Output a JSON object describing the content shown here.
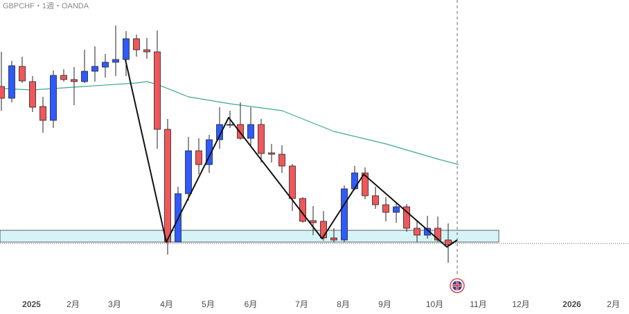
{
  "chart_data": {
    "type": "candlestick",
    "title": "GBPCHF・1週・OANDA",
    "x": [
      0,
      1,
      2,
      3,
      4,
      5,
      6,
      7,
      8,
      9,
      10,
      11,
      12,
      13,
      14,
      15,
      16,
      17,
      18,
      19,
      20,
      21,
      22,
      23,
      24,
      25,
      26,
      27,
      28,
      29,
      30,
      31,
      32,
      33,
      34,
      35,
      36,
      37,
      38,
      39,
      40,
      41,
      42,
      43
    ],
    "open": [
      375,
      358,
      404,
      382,
      346,
      326,
      391,
      385,
      382,
      397,
      403,
      410,
      414,
      444,
      428,
      425,
      313,
      150,
      220,
      282,
      262,
      298,
      319,
      320,
      300,
      320,
      279,
      277,
      260,
      213,
      181,
      180,
      156,
      153,
      227,
      250,
      217,
      204,
      193,
      201,
      170,
      160,
      170,
      153
    ],
    "high": [
      425,
      412,
      418,
      390,
      360,
      398,
      400,
      403,
      428,
      433,
      422,
      463,
      455,
      450,
      445,
      456,
      328,
      230,
      302,
      300,
      305,
      345,
      340,
      352,
      345,
      328,
      292,
      290,
      263,
      215,
      202,
      195,
      170,
      232,
      260,
      258,
      230,
      215,
      208,
      205,
      182,
      188,
      187,
      177
    ],
    "low": [
      340,
      352,
      380,
      338,
      308,
      315,
      382,
      348,
      380,
      382,
      388,
      390,
      390,
      418,
      415,
      285,
      132,
      150,
      210,
      248,
      250,
      285,
      315,
      298,
      290,
      265,
      265,
      250,
      195,
      178,
      160,
      152,
      150,
      150,
      225,
      212,
      198,
      180,
      178,
      165,
      150,
      155,
      150,
      120
    ],
    "close": [
      358,
      405,
      383,
      345,
      326,
      391,
      385,
      382,
      397,
      404,
      410,
      414,
      444,
      428,
      425,
      313,
      150,
      220,
      282,
      262,
      298,
      320,
      320,
      300,
      320,
      278,
      277,
      260,
      213,
      180,
      178,
      156,
      153,
      227,
      250,
      217,
      204,
      193,
      201,
      170,
      160,
      170,
      153,
      146
    ],
    "up_color": "#2e5bff",
    "down_color": "#f0575a",
    "moving_average": {
      "color": "#3aa88f",
      "x": [
        0,
        3,
        8,
        13,
        14,
        15,
        18,
        22,
        27,
        32,
        37,
        42,
        44
      ],
      "values": [
        372,
        370,
        375,
        380,
        382,
        378,
        360,
        350,
        340,
        310,
        292,
        270,
        262
      ]
    },
    "zigzag": {
      "color": "#111111",
      "x": [
        11.93,
        15.87,
        21.87,
        30.87,
        34.87,
        42.87,
        43.87
      ],
      "values": [
        414,
        150,
        330,
        155,
        248,
        143,
        153
      ]
    },
    "zone": {
      "x": [
        -0.13,
        47.87
      ],
      "values": [
        150,
        167
      ],
      "color": "#d6f4f7"
    },
    "price_line": 148,
    "time_marker": 43.87,
    "xlim": [
      -0.1333,
      60.4
    ],
    "ylim": [
      70,
      500
    ],
    "xticks": [
      {
        "value": 2.9,
        "label": "2025"
      },
      {
        "value": 6.9,
        "label": "2月"
      },
      {
        "value": 10.9,
        "label": "3月"
      },
      {
        "value": 15.9,
        "label": "4月"
      },
      {
        "value": 19.9,
        "label": "5月"
      },
      {
        "value": 24,
        "label": "6月"
      },
      {
        "value": 28.9,
        "label": "7月"
      },
      {
        "value": 32.9,
        "label": "8月"
      },
      {
        "value": 36.9,
        "label": "9月"
      },
      {
        "value": 41.7,
        "label": "10月"
      },
      {
        "value": 45.9,
        "label": "11月"
      },
      {
        "value": 50,
        "label": "12月"
      },
      {
        "value": 54.9,
        "label": "2026"
      },
      {
        "value": 58.9,
        "label": "2月"
      }
    ]
  }
}
